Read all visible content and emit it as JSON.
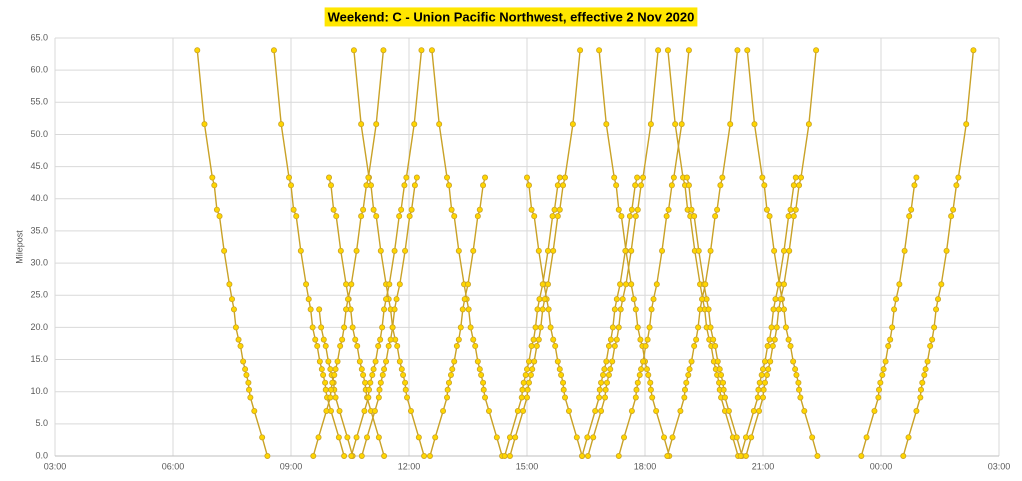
{
  "chart_data": {
    "type": "line",
    "title": "Weekend: C - Union Pacific Northwest, effective 2 Nov 2020",
    "y_label": "Milepost",
    "color": "#c9a227",
    "marker_color": "#ffd600",
    "grid": true,
    "xlim": [
      180,
      1620
    ],
    "xticks": [
      {
        "value": 180,
        "label": "03:00"
      },
      {
        "value": 360,
        "label": "06:00"
      },
      {
        "value": 540,
        "label": "09:00"
      },
      {
        "value": 720,
        "label": "12:00"
      },
      {
        "value": 900,
        "label": "15:00"
      },
      {
        "value": 1080,
        "label": "18:00"
      },
      {
        "value": 1260,
        "label": "21:00"
      },
      {
        "value": 1440,
        "label": "00:00"
      },
      {
        "value": 1620,
        "label": "03:00"
      }
    ],
    "ylim": [
      0,
      65
    ],
    "yticks": [
      {
        "value": 0,
        "label": "0.0"
      },
      {
        "value": 5,
        "label": "5.0"
      },
      {
        "value": 10,
        "label": "10.0"
      },
      {
        "value": 15,
        "label": "15.0"
      },
      {
        "value": 20,
        "label": "20.0"
      },
      {
        "value": 25,
        "label": "25.0"
      },
      {
        "value": 30,
        "label": "30.0"
      },
      {
        "value": 35,
        "label": "35.0"
      },
      {
        "value": 40,
        "label": "40.0"
      },
      {
        "value": 45,
        "label": "45.0"
      },
      {
        "value": 50,
        "label": "50.0"
      },
      {
        "value": 55,
        "label": "55.0"
      },
      {
        "value": 60,
        "label": "60.0"
      },
      {
        "value": 65,
        "label": "65.0"
      }
    ],
    "series": [
      {
        "x": [
          397,
          408,
          420,
          423,
          427,
          431,
          438,
          446,
          450,
          453,
          456,
          460,
          463,
          467,
          470,
          472,
          475,
          476,
          478,
          484,
          496,
          504
        ],
        "values": [
          63.1,
          51.6,
          43.3,
          42.1,
          38.3,
          37.3,
          31.9,
          26.7,
          24.4,
          22.8,
          20,
          18.1,
          17.1,
          14.7,
          13.5,
          12.6,
          11.4,
          10.3,
          9.1,
          7,
          2.9,
          0
        ]
      },
      {
        "x": [
          514,
          525,
          537,
          540,
          544,
          548,
          555,
          563,
          567,
          570,
          573,
          577,
          580,
          584,
          587,
          589,
          592,
          593,
          595,
          601,
          613,
          621
        ],
        "values": [
          63.1,
          51.6,
          43.3,
          42.1,
          38.3,
          37.3,
          31.9,
          26.7,
          24.4,
          22.8,
          20,
          18.1,
          17.1,
          14.7,
          13.5,
          12.6,
          11.4,
          10.3,
          9.1,
          7,
          2.9,
          0
        ]
      },
      {
        "x": [
          636,
          647,
          659,
          662,
          666,
          670,
          677,
          685,
          689,
          692,
          695,
          699,
          702,
          706,
          709,
          711,
          714,
          715,
          717,
          723,
          735,
          743
        ],
        "values": [
          63.1,
          51.6,
          43.3,
          42.1,
          38.3,
          37.3,
          31.9,
          26.7,
          24.4,
          22.8,
          20,
          18.1,
          17.1,
          14.7,
          13.5,
          12.6,
          11.4,
          10.3,
          9.1,
          7,
          2.9,
          0
        ]
      },
      {
        "x": [
          755,
          766,
          778,
          781,
          785,
          789,
          796,
          804,
          808,
          811,
          814,
          818,
          821,
          825,
          828,
          830,
          833,
          834,
          836,
          842,
          854,
          862
        ],
        "values": [
          63.1,
          51.6,
          43.3,
          42.1,
          38.3,
          37.3,
          31.9,
          26.7,
          24.4,
          22.8,
          20,
          18.1,
          17.1,
          14.7,
          13.5,
          12.6,
          11.4,
          10.3,
          9.1,
          7,
          2.9,
          0
        ]
      },
      {
        "x": [
          1010,
          1021,
          1033,
          1036,
          1040,
          1044,
          1051,
          1059,
          1063,
          1066,
          1069,
          1073,
          1076,
          1080,
          1083,
          1085,
          1088,
          1089,
          1091,
          1097,
          1109,
          1117
        ],
        "values": [
          63.1,
          51.6,
          43.3,
          42.1,
          38.3,
          37.3,
          31.9,
          26.7,
          24.4,
          22.8,
          20,
          18.1,
          17.1,
          14.7,
          13.5,
          12.6,
          11.4,
          10.3,
          9.1,
          7,
          2.9,
          0
        ]
      },
      {
        "x": [
          1115,
          1126,
          1138,
          1141,
          1145,
          1149,
          1156,
          1164,
          1168,
          1171,
          1174,
          1178,
          1181,
          1185,
          1188,
          1190,
          1193,
          1194,
          1196,
          1202,
          1214,
          1222
        ],
        "values": [
          63.1,
          51.6,
          43.3,
          42.1,
          38.3,
          37.3,
          31.9,
          26.7,
          24.4,
          22.8,
          20,
          18.1,
          17.1,
          14.7,
          13.5,
          12.6,
          11.4,
          10.3,
          9.1,
          7,
          2.9,
          0
        ]
      },
      {
        "x": [
          1236,
          1247,
          1259,
          1262,
          1266,
          1270,
          1277,
          1285,
          1289,
          1292,
          1295,
          1299,
          1302,
          1306,
          1309,
          1311,
          1314,
          1315,
          1317,
          1323,
          1335,
          1343
        ],
        "values": [
          63.1,
          51.6,
          43.3,
          42.1,
          38.3,
          37.3,
          31.9,
          26.7,
          24.4,
          22.8,
          20,
          18.1,
          17.1,
          14.7,
          13.5,
          12.6,
          11.4,
          10.3,
          9.1,
          7,
          2.9,
          0
        ]
      },
      {
        "x": [
          598,
          601,
          605,
          609,
          616,
          624,
          628,
          631,
          634,
          638,
          641,
          645,
          648,
          650,
          653,
          654,
          656,
          662,
          674,
          682
        ],
        "values": [
          43.3,
          42.1,
          38.3,
          37.3,
          31.9,
          26.7,
          24.4,
          22.8,
          20,
          18.1,
          17.1,
          14.7,
          13.5,
          12.6,
          11.4,
          10.3,
          9.1,
          7,
          2.9,
          0
        ]
      },
      {
        "x": [
          900,
          903,
          907,
          911,
          918,
          926,
          930,
          933,
          936,
          940,
          943,
          947,
          950,
          952,
          955,
          956,
          958,
          964,
          976,
          984
        ],
        "values": [
          43.3,
          42.1,
          38.3,
          37.3,
          31.9,
          26.7,
          24.4,
          22.8,
          20,
          18.1,
          17.1,
          14.7,
          13.5,
          12.6,
          11.4,
          10.3,
          9.1,
          7,
          2.9,
          0
        ]
      },
      {
        "x": [
          1144,
          1147,
          1151,
          1155,
          1162,
          1170,
          1174,
          1177,
          1180,
          1184,
          1187,
          1191,
          1194,
          1196,
          1199,
          1200,
          1202,
          1208,
          1220,
          1228
        ],
        "values": [
          43.3,
          42.1,
          38.3,
          37.3,
          31.9,
          26.7,
          24.4,
          22.8,
          20,
          18.1,
          17.1,
          14.7,
          13.5,
          12.6,
          11.4,
          10.3,
          9.1,
          7,
          2.9,
          0
        ]
      },
      {
        "x": [
          583,
          586,
          590,
          593,
          597,
          600,
          602,
          605,
          606,
          608,
          614,
          626,
          634
        ],
        "values": [
          22.8,
          20,
          18.1,
          17.1,
          14.7,
          13.5,
          12.6,
          11.4,
          10.3,
          9.1,
          7,
          2.9,
          0
        ]
      },
      {
        "x": [
          574,
          582,
          594,
          600,
          601,
          603,
          606,
          608,
          611,
          615,
          618,
          621,
          624,
          627,
          632,
          640,
          647,
          650,
          655,
          658,
          670,
          681
        ],
        "values": [
          0,
          2.9,
          7,
          9.1,
          10.3,
          11.4,
          12.6,
          13.5,
          14.7,
          17.1,
          18.1,
          20,
          22.8,
          24.4,
          26.7,
          31.9,
          37.3,
          38.3,
          42.1,
          43.3,
          51.6,
          63.1
        ]
      },
      {
        "x": [
          632,
          640,
          652,
          658,
          659,
          661,
          664,
          666,
          669,
          673,
          676,
          679,
          682,
          685,
          690,
          698,
          705,
          708,
          713,
          716,
          728,
          739
        ],
        "values": [
          0,
          2.9,
          7,
          9.1,
          10.3,
          11.4,
          12.6,
          13.5,
          14.7,
          17.1,
          18.1,
          20,
          22.8,
          24.4,
          26.7,
          31.9,
          37.3,
          38.3,
          42.1,
          43.3,
          51.6,
          63.1
        ]
      },
      {
        "x": [
          874,
          882,
          894,
          900,
          901,
          903,
          906,
          908,
          911,
          915,
          918,
          921,
          924,
          927,
          932,
          940,
          947,
          950,
          955,
          958,
          970,
          981
        ],
        "values": [
          0,
          2.9,
          7,
          9.1,
          10.3,
          11.4,
          12.6,
          13.5,
          14.7,
          17.1,
          18.1,
          20,
          22.8,
          24.4,
          26.7,
          31.9,
          37.3,
          38.3,
          42.1,
          43.3,
          51.6,
          63.1
        ]
      },
      {
        "x": [
          993,
          1001,
          1013,
          1019,
          1020,
          1022,
          1025,
          1027,
          1030,
          1034,
          1037,
          1040,
          1043,
          1046,
          1051,
          1059,
          1066,
          1069,
          1074,
          1077,
          1089,
          1100
        ],
        "values": [
          0,
          2.9,
          7,
          9.1,
          10.3,
          11.4,
          12.6,
          13.5,
          14.7,
          17.1,
          18.1,
          20,
          22.8,
          24.4,
          26.7,
          31.9,
          37.3,
          38.3,
          42.1,
          43.3,
          51.6,
          63.1
        ]
      },
      {
        "x": [
          1040,
          1048,
          1060,
          1066,
          1067,
          1069,
          1072,
          1074,
          1077,
          1081,
          1084,
          1087,
          1090,
          1093,
          1098,
          1106,
          1113,
          1116,
          1121,
          1124,
          1136,
          1147
        ],
        "values": [
          0,
          2.9,
          7,
          9.1,
          10.3,
          11.4,
          12.6,
          13.5,
          14.7,
          17.1,
          18.1,
          20,
          22.8,
          24.4,
          26.7,
          31.9,
          37.3,
          38.3,
          42.1,
          43.3,
          51.6,
          63.1
        ]
      },
      {
        "x": [
          1114,
          1122,
          1134,
          1140,
          1141,
          1143,
          1146,
          1148,
          1151,
          1155,
          1158,
          1161,
          1164,
          1167,
          1172,
          1180,
          1187,
          1190,
          1195,
          1198,
          1210,
          1221
        ],
        "values": [
          0,
          2.9,
          7,
          9.1,
          10.3,
          11.4,
          12.6,
          13.5,
          14.7,
          17.1,
          18.1,
          20,
          22.8,
          24.4,
          26.7,
          31.9,
          37.3,
          38.3,
          42.1,
          43.3,
          51.6,
          63.1
        ]
      },
      {
        "x": [
          1234,
          1242,
          1254,
          1260,
          1261,
          1263,
          1266,
          1268,
          1271,
          1275,
          1278,
          1281,
          1284,
          1287,
          1292,
          1300,
          1307,
          1310,
          1315,
          1318,
          1330,
          1341
        ],
        "values": [
          0,
          2.9,
          7,
          9.1,
          10.3,
          11.4,
          12.6,
          13.5,
          14.7,
          17.1,
          18.1,
          20,
          22.8,
          24.4,
          26.7,
          31.9,
          37.3,
          38.3,
          42.1,
          43.3,
          51.6,
          63.1
        ]
      },
      {
        "x": [
          1474,
          1482,
          1494,
          1500,
          1501,
          1503,
          1506,
          1508,
          1511,
          1515,
          1518,
          1521,
          1524,
          1527,
          1532,
          1540,
          1547,
          1550,
          1555,
          1558,
          1570,
          1581
        ],
        "values": [
          0,
          2.9,
          7,
          9.1,
          10.3,
          11.4,
          12.6,
          13.5,
          14.7,
          17.1,
          18.1,
          20,
          22.8,
          24.4,
          26.7,
          31.9,
          37.3,
          38.3,
          42.1,
          43.3,
          51.6,
          63.1
        ]
      },
      {
        "x": [
          648,
          656,
          668,
          674,
          675,
          677,
          680,
          682,
          685,
          689,
          692,
          695,
          698,
          701,
          706,
          714,
          721,
          724,
          729,
          732
        ],
        "values": [
          0,
          2.9,
          7,
          9.1,
          10.3,
          11.4,
          12.6,
          13.5,
          14.7,
          17.1,
          18.1,
          20,
          22.8,
          24.4,
          26.7,
          31.9,
          37.3,
          38.3,
          42.1,
          43.3
        ]
      },
      {
        "x": [
          752,
          760,
          772,
          778,
          779,
          781,
          784,
          786,
          789,
          793,
          796,
          799,
          802,
          805,
          810,
          818,
          825,
          828,
          833,
          836
        ],
        "values": [
          0,
          2.9,
          7,
          9.1,
          10.3,
          11.4,
          12.6,
          13.5,
          14.7,
          17.1,
          18.1,
          20,
          22.8,
          24.4,
          26.7,
          31.9,
          37.3,
          38.3,
          42.1,
          43.3
        ]
      },
      {
        "x": [
          866,
          874,
          886,
          892,
          893,
          895,
          898,
          900,
          903,
          907,
          910,
          913,
          916,
          919,
          924,
          932,
          939,
          942,
          947,
          950
        ],
        "values": [
          0,
          2.9,
          7,
          9.1,
          10.3,
          11.4,
          12.6,
          13.5,
          14.7,
          17.1,
          18.1,
          20,
          22.8,
          24.4,
          26.7,
          31.9,
          37.3,
          38.3,
          42.1,
          43.3
        ]
      },
      {
        "x": [
          984,
          992,
          1004,
          1010,
          1011,
          1013,
          1016,
          1018,
          1021,
          1025,
          1028,
          1031,
          1034,
          1037,
          1042,
          1050,
          1057,
          1060,
          1065,
          1068
        ],
        "values": [
          0,
          2.9,
          7,
          9.1,
          10.3,
          11.4,
          12.6,
          13.5,
          14.7,
          17.1,
          18.1,
          20,
          22.8,
          24.4,
          26.7,
          31.9,
          37.3,
          38.3,
          42.1,
          43.3
        ]
      },
      {
        "x": [
          1226,
          1234,
          1246,
          1252,
          1253,
          1255,
          1258,
          1260,
          1263,
          1267,
          1270,
          1273,
          1276,
          1279,
          1284,
          1292,
          1299,
          1302,
          1307,
          1310
        ],
        "values": [
          0,
          2.9,
          7,
          9.1,
          10.3,
          11.4,
          12.6,
          13.5,
          14.7,
          17.1,
          18.1,
          20,
          22.8,
          24.4,
          26.7,
          31.9,
          37.3,
          38.3,
          42.1,
          43.3
        ]
      },
      {
        "x": [
          1410,
          1418,
          1430,
          1436,
          1437,
          1439,
          1442,
          1444,
          1447,
          1451,
          1454,
          1457,
          1460,
          1463,
          1468,
          1476,
          1483,
          1486,
          1491,
          1494
        ],
        "values": [
          0,
          2.9,
          7,
          9.1,
          10.3,
          11.4,
          12.6,
          13.5,
          14.7,
          17.1,
          18.1,
          20,
          22.8,
          24.4,
          26.7,
          31.9,
          37.3,
          38.3,
          42.1,
          43.3
        ]
      }
    ]
  }
}
